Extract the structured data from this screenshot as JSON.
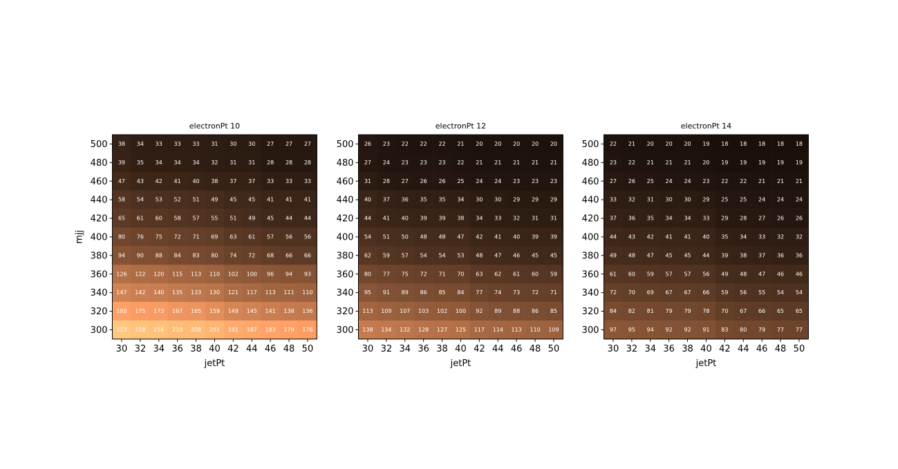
{
  "chart_data": [
    {
      "type": "heatmap",
      "title": "electronPt 10",
      "xlabel": "jetPt",
      "ylabel": "mjj",
      "x": [
        30,
        32,
        34,
        36,
        38,
        40,
        42,
        44,
        46,
        48,
        50
      ],
      "y": [
        500,
        480,
        460,
        440,
        420,
        400,
        380,
        360,
        340,
        320,
        300
      ],
      "colormap": "copper",
      "vmax": 223,
      "values": [
        [
          38,
          34,
          33,
          33,
          33,
          31,
          30,
          30,
          27,
          27,
          27
        ],
        [
          39,
          35,
          34,
          34,
          34,
          32,
          31,
          31,
          28,
          28,
          28
        ],
        [
          47,
          43,
          42,
          41,
          40,
          38,
          37,
          37,
          33,
          33,
          33
        ],
        [
          58,
          54,
          53,
          52,
          51,
          49,
          45,
          45,
          41,
          41,
          41
        ],
        [
          65,
          61,
          60,
          58,
          57,
          55,
          51,
          49,
          45,
          44,
          44
        ],
        [
          80,
          76,
          75,
          72,
          71,
          69,
          63,
          61,
          57,
          56,
          56
        ],
        [
          94,
          90,
          88,
          84,
          83,
          80,
          74,
          72,
          68,
          66,
          66
        ],
        [
          126,
          122,
          120,
          115,
          113,
          110,
          102,
          100,
          96,
          94,
          93
        ],
        [
          147,
          142,
          140,
          135,
          133,
          130,
          121,
          117,
          113,
          111,
          110
        ],
        [
          180,
          175,
          173,
          167,
          165,
          159,
          149,
          145,
          141,
          138,
          136
        ],
        [
          223,
          218,
          216,
          210,
          208,
          201,
          191,
          187,
          183,
          179,
          176
        ]
      ]
    },
    {
      "type": "heatmap",
      "title": "electronPt 12",
      "xlabel": "jetPt",
      "ylabel": "",
      "x": [
        30,
        32,
        34,
        36,
        38,
        40,
        42,
        44,
        46,
        48,
        50
      ],
      "y": [
        500,
        480,
        460,
        440,
        420,
        400,
        380,
        360,
        340,
        320,
        300
      ],
      "colormap": "copper",
      "vmax": 223,
      "values": [
        [
          26,
          23,
          22,
          22,
          22,
          21,
          20,
          20,
          20,
          20,
          20
        ],
        [
          27,
          24,
          23,
          23,
          23,
          22,
          21,
          21,
          21,
          21,
          21
        ],
        [
          31,
          28,
          27,
          26,
          26,
          25,
          24,
          24,
          23,
          23,
          23
        ],
        [
          40,
          37,
          36,
          35,
          35,
          34,
          30,
          30,
          29,
          29,
          29
        ],
        [
          44,
          41,
          40,
          39,
          39,
          38,
          34,
          33,
          32,
          31,
          31
        ],
        [
          54,
          51,
          50,
          48,
          48,
          47,
          42,
          41,
          40,
          39,
          39
        ],
        [
          62,
          59,
          57,
          54,
          54,
          53,
          48,
          47,
          46,
          45,
          45
        ],
        [
          80,
          77,
          75,
          72,
          71,
          70,
          63,
          62,
          61,
          60,
          59
        ],
        [
          95,
          91,
          89,
          86,
          85,
          84,
          77,
          74,
          73,
          72,
          71
        ],
        [
          113,
          109,
          107,
          103,
          102,
          100,
          92,
          89,
          88,
          86,
          85
        ],
        [
          138,
          134,
          132,
          128,
          127,
          125,
          117,
          114,
          113,
          110,
          109
        ]
      ]
    },
    {
      "type": "heatmap",
      "title": "electronPt 14",
      "xlabel": "jetPt",
      "ylabel": "",
      "x": [
        30,
        32,
        34,
        36,
        38,
        40,
        42,
        44,
        46,
        48,
        50
      ],
      "y": [
        500,
        480,
        460,
        440,
        420,
        400,
        380,
        360,
        340,
        320,
        300
      ],
      "colormap": "copper",
      "vmax": 223,
      "values": [
        [
          22,
          21,
          20,
          20,
          20,
          19,
          18,
          18,
          18,
          18,
          18
        ],
        [
          23,
          22,
          21,
          21,
          21,
          20,
          19,
          19,
          19,
          19,
          19
        ],
        [
          27,
          26,
          25,
          24,
          24,
          23,
          22,
          22,
          21,
          21,
          21
        ],
        [
          33,
          32,
          31,
          30,
          30,
          29,
          25,
          25,
          24,
          24,
          24
        ],
        [
          37,
          36,
          35,
          34,
          34,
          33,
          29,
          28,
          27,
          26,
          26
        ],
        [
          44,
          43,
          42,
          41,
          41,
          40,
          35,
          34,
          33,
          32,
          32
        ],
        [
          49,
          48,
          47,
          45,
          45,
          44,
          39,
          38,
          37,
          36,
          36
        ],
        [
          61,
          60,
          59,
          57,
          57,
          56,
          49,
          48,
          47,
          46,
          46
        ],
        [
          72,
          70,
          69,
          67,
          67,
          66,
          59,
          56,
          55,
          54,
          54
        ],
        [
          84,
          82,
          81,
          79,
          79,
          78,
          70,
          67,
          66,
          65,
          65
        ],
        [
          97,
          95,
          94,
          92,
          92,
          91,
          83,
          80,
          79,
          77,
          77
        ]
      ]
    }
  ]
}
